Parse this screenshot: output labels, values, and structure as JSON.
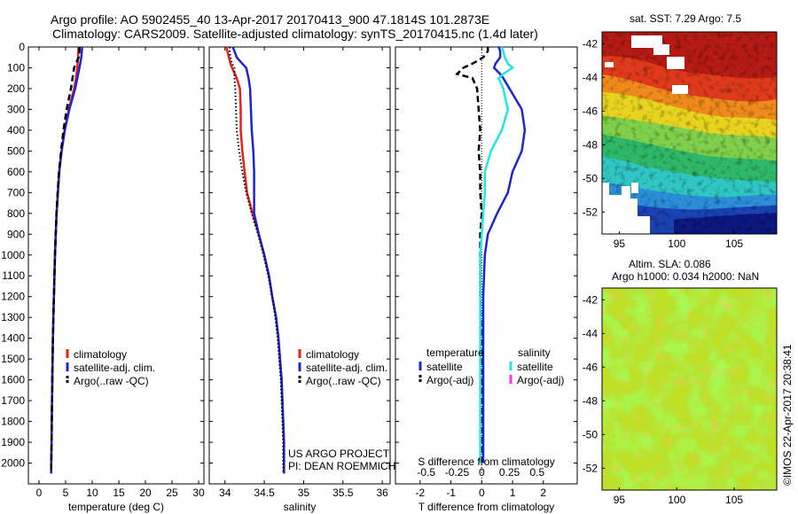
{
  "header": {
    "line1": "Argo profile: AO 5902455_40 13-Apr-2017 20170413_900 47.1814S 101.2873E",
    "line2": "Climatology: CARS2009. Satellite-adjusted climatology: synTS_20170415.nc (1.4d later)"
  },
  "colors": {
    "climatology": "#e8201a",
    "satellite": "#1d24d4",
    "argo": "#000000",
    "satellite_salinity": "#20e6e8",
    "argo_salinity_adj": "#ff30ff"
  },
  "chart_data": [
    {
      "id": "temperature",
      "type": "line",
      "xlabel": "temperature (deg C)",
      "ylabel": "",
      "xlim": [
        -2,
        31
      ],
      "ylim": [
        2100,
        0
      ],
      "xticks": [
        "0",
        "5",
        "10",
        "15",
        "20",
        "25",
        "30"
      ],
      "yticks": [
        "0",
        "100",
        "200",
        "300",
        "400",
        "500",
        "600",
        "700",
        "800",
        "900",
        "1000",
        "1100",
        "1200",
        "1300",
        "1400",
        "1500",
        "1600",
        "1700",
        "1800",
        "1900",
        "2000"
      ],
      "legend": [
        "climatology",
        "satellite-adj. clim.",
        "Argo(..raw -QC)"
      ],
      "legend_position": "lower-center",
      "depth": [
        0,
        20,
        50,
        100,
        150,
        200,
        300,
        400,
        500,
        600,
        700,
        800,
        900,
        1000,
        1100,
        1200,
        1300,
        1400,
        1500,
        1600,
        1700,
        1800,
        1900,
        2000,
        2050
      ],
      "series": [
        {
          "name": "climatology",
          "style": "solid",
          "values": [
            7.4,
            7.4,
            7.35,
            7.2,
            6.95,
            6.6,
            5.6,
            4.8,
            4.25,
            3.8,
            3.55,
            3.3,
            3.15,
            3.0,
            2.9,
            2.8,
            2.7,
            2.62,
            2.55,
            2.5,
            2.45,
            2.4,
            2.36,
            2.3,
            2.28
          ]
        },
        {
          "name": "satellite-adj. clim.",
          "style": "solid",
          "values": [
            8.1,
            8.05,
            7.95,
            7.6,
            7.2,
            6.8,
            5.7,
            4.85,
            4.25,
            3.8,
            3.55,
            3.3,
            3.15,
            3.0,
            2.9,
            2.8,
            2.7,
            2.62,
            2.55,
            2.5,
            2.45,
            2.4,
            2.36,
            2.3,
            2.28
          ]
        },
        {
          "name": "Argo(..raw -QC)",
          "style": "dashed",
          "values": [
            7.6,
            7.6,
            7.45,
            6.6,
            6.3,
            6.0,
            5.2,
            4.6,
            4.15,
            3.75,
            3.5,
            3.28,
            3.13,
            3.0,
            2.9,
            2.8,
            2.7,
            2.62,
            2.55,
            2.5,
            2.45,
            2.4,
            2.36,
            2.3,
            2.28
          ]
        }
      ]
    },
    {
      "id": "salinity",
      "type": "line",
      "xlabel": "salinity",
      "xlim": [
        33.8,
        36.1
      ],
      "ylim": [
        2100,
        0
      ],
      "xticks": [
        "34",
        "34.5",
        "35",
        "35.5",
        "36"
      ],
      "legend": [
        "climatology",
        "satellite-adj. clim.",
        "Argo(..raw -QC)"
      ],
      "legend_position": "lower-center",
      "annotation": [
        "US ARGO PROJECT",
        "PI: DEAN ROEMMICH"
      ],
      "depth": [
        0,
        20,
        50,
        80,
        100,
        150,
        200,
        300,
        400,
        500,
        600,
        700,
        800,
        900,
        1000,
        1100,
        1200,
        1300,
        1400,
        1500,
        1600,
        1700,
        1800,
        1900,
        2000,
        2050
      ],
      "series": [
        {
          "name": "climatology",
          "style": "solid",
          "values": [
            34.02,
            34.03,
            34.05,
            34.07,
            34.09,
            34.15,
            34.19,
            34.2,
            34.2,
            34.22,
            34.25,
            34.28,
            34.35,
            34.43,
            34.5,
            34.56,
            34.6,
            34.65,
            34.68,
            34.7,
            34.72,
            34.73,
            34.74,
            34.75,
            34.75,
            34.75
          ]
        },
        {
          "name": "satellite-adj. clim.",
          "style": "solid",
          "values": [
            34.1,
            34.12,
            34.15,
            34.22,
            34.27,
            34.3,
            34.32,
            34.33,
            34.34,
            34.36,
            34.37,
            34.37,
            34.37,
            34.43,
            34.5,
            34.56,
            34.6,
            34.65,
            34.68,
            34.7,
            34.72,
            34.73,
            34.74,
            34.75,
            34.75,
            34.75
          ]
        },
        {
          "name": "Argo(..raw -QC)",
          "style": "dotted",
          "values": [
            34.06,
            34.06,
            34.07,
            34.09,
            34.12,
            34.12,
            34.13,
            34.14,
            34.15,
            34.18,
            34.22,
            34.27,
            34.34,
            34.42,
            34.49,
            34.55,
            34.6,
            34.64,
            34.67,
            34.69,
            34.71,
            34.72,
            34.73,
            34.74,
            34.74,
            34.74
          ]
        }
      ]
    },
    {
      "id": "difference",
      "type": "line",
      "xlabel": "T difference from climatology",
      "xlabel_top": "S difference from climatology",
      "xlim": [
        -2.8,
        3.1
      ],
      "ylim": [
        2100,
        0
      ],
      "xticks": [
        "-2",
        "-1",
        "0",
        "1",
        "2"
      ],
      "xticks_top": [
        "-0.5",
        "-0.25",
        "0",
        "0.25",
        "0.5"
      ],
      "legend_titles": [
        "temperature",
        "salinity"
      ],
      "legend": [
        "satellite",
        "Argo(-adj)",
        "satellite",
        "Argo(-adj)"
      ],
      "legend_position": "lower-center",
      "depth": [
        0,
        20,
        50,
        80,
        100,
        130,
        150,
        200,
        300,
        400,
        500,
        600,
        700,
        800,
        900,
        1000,
        1200,
        1400,
        1600,
        1800,
        2000
      ],
      "series": [
        {
          "name": "temperature satellite",
          "style": "solid",
          "values": [
            0.55,
            0.6,
            0.6,
            0.45,
            0.4,
            0.6,
            0.7,
            0.9,
            1.3,
            1.4,
            1.3,
            1.0,
            0.85,
            0.5,
            0.2,
            0.1,
            0.05,
            0.05,
            0.05,
            0.05,
            0.05
          ]
        },
        {
          "name": "temperature Argo(-adj)",
          "style": "dashed",
          "values": [
            0.2,
            0.2,
            0.05,
            -0.3,
            -0.6,
            -0.8,
            -0.3,
            -0.15,
            -0.1,
            -0.05,
            -0.1,
            -0.05,
            -0.05,
            0.0,
            -0.05,
            -0.05,
            -0.05,
            -0.02,
            -0.02,
            -0.02,
            -0.02
          ]
        },
        {
          "name": "salinity satellite",
          "style": "solid",
          "values": [
            0.65,
            0.7,
            0.75,
            0.85,
            1.0,
            0.7,
            0.55,
            0.7,
            0.85,
            0.65,
            0.3,
            0.1,
            0.1,
            0.05,
            0.0,
            -0.05,
            -0.05,
            -0.05,
            -0.05,
            -0.05,
            -0.05
          ]
        },
        {
          "name": "salinity Argo(-adj)",
          "style": "solid",
          "values": []
        }
      ]
    },
    {
      "id": "sst_map",
      "type": "heatmap",
      "title": "sat. SST: 7.29  Argo: 7.5",
      "xticks": [
        "95",
        "100",
        "105"
      ],
      "yticks": [
        "-42",
        "-44",
        "-46",
        "-48",
        "-50",
        "-52"
      ],
      "xlim": [
        93.5,
        108.7
      ],
      "ylim": [
        -53.3,
        -41.3
      ]
    },
    {
      "id": "sla_map",
      "type": "heatmap",
      "title": [
        "Altim. SLA: 0.086",
        "Argo h1000: 0.034 h2000: NaN"
      ],
      "xticks": [
        "95",
        "100",
        "105"
      ],
      "yticks": [
        "-42",
        "-44",
        "-46",
        "-48",
        "-50",
        "-52"
      ],
      "xlim": [
        93.5,
        108.7
      ],
      "ylim": [
        -53.3,
        -41.3
      ]
    }
  ],
  "stamp": "©IMOS 22-Apr-2017 20:38:41"
}
